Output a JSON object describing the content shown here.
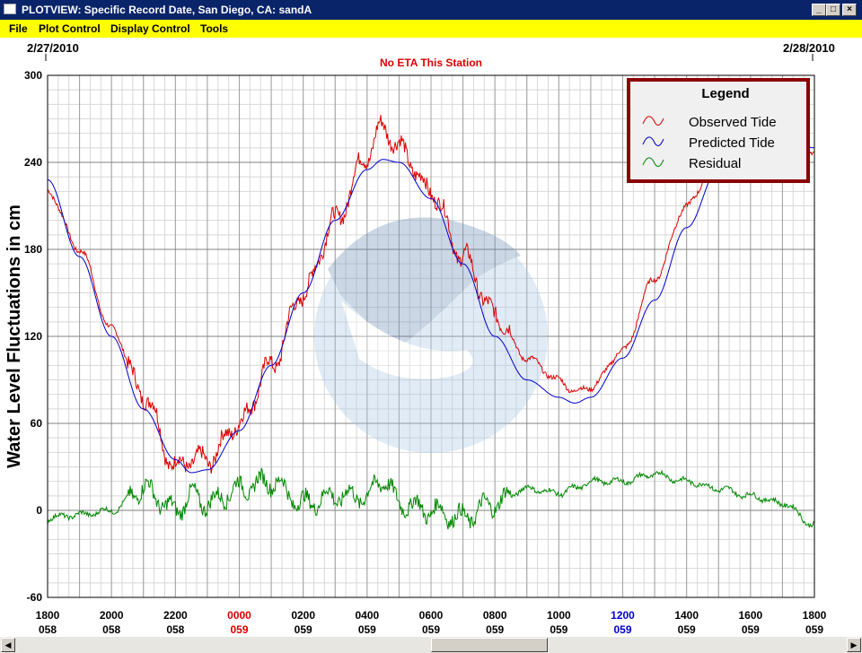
{
  "window": {
    "title": "PLOTVIEW: Specific Record Date, San Diego, CA: sandA",
    "buttons": {
      "minimize": "_",
      "maximize": "□",
      "close": "×"
    }
  },
  "menu": {
    "items": [
      "File",
      "Plot Control",
      "Display Control",
      "Tools"
    ]
  },
  "plot": {
    "date_left": "2/27/2010",
    "date_right": "2/28/2010",
    "notice": "No ETA This Station",
    "ylabel": "Water Level Fluctuations in cm",
    "legend_title": "Legend",
    "colors": {
      "observed": "#dd0000",
      "predicted": "#0000cc",
      "residual": "#008800",
      "notice": "#dd0000",
      "legend_border": "#8b0000",
      "grid": "#a0a0a0"
    }
  },
  "chart_data": {
    "type": "line",
    "title": "No ETA This Station",
    "xlabel": "",
    "ylabel": "Water Level Fluctuations in cm",
    "ylim": [
      -60,
      300
    ],
    "yticks": [
      -60,
      0,
      60,
      120,
      180,
      240,
      300
    ],
    "xlim": [
      -6,
      18
    ],
    "xlim_note": "hours relative to 0000 day 059",
    "xticks": [
      {
        "time": "1800",
        "day": "058",
        "highlight": ""
      },
      {
        "time": "2000",
        "day": "058",
        "highlight": ""
      },
      {
        "time": "2200",
        "day": "058",
        "highlight": ""
      },
      {
        "time": "0000",
        "day": "059",
        "highlight": "red"
      },
      {
        "time": "0200",
        "day": "059",
        "highlight": ""
      },
      {
        "time": "0400",
        "day": "059",
        "highlight": ""
      },
      {
        "time": "0600",
        "day": "059",
        "highlight": ""
      },
      {
        "time": "0800",
        "day": "059",
        "highlight": ""
      },
      {
        "time": "1000",
        "day": "059",
        "highlight": ""
      },
      {
        "time": "1200",
        "day": "059",
        "highlight": "blue"
      },
      {
        "time": "1400",
        "day": "059",
        "highlight": ""
      },
      {
        "time": "1600",
        "day": "059",
        "highlight": ""
      },
      {
        "time": "1800",
        "day": "059",
        "highlight": ""
      }
    ],
    "grid": true,
    "legend_position": "top-right",
    "x": [
      -6,
      -5,
      -4,
      -3,
      -2,
      -1.5,
      -1,
      0,
      1,
      2,
      3,
      4,
      4.5,
      5,
      6,
      7,
      8,
      9,
      10,
      10.5,
      11,
      12,
      13,
      14,
      15,
      16,
      17,
      18
    ],
    "series": [
      {
        "name": "Observed Tide",
        "color": "#dd0000",
        "values": [
          220,
          180,
          125,
          80,
          30,
          35,
          35,
          60,
          100,
          150,
          200,
          245,
          265,
          250,
          220,
          175,
          135,
          105,
          90,
          82,
          85,
          110,
          160,
          210,
          245,
          270,
          265,
          248
        ]
      },
      {
        "name": "Predicted Tide",
        "color": "#0000cc",
        "values": [
          228,
          175,
          120,
          70,
          35,
          26,
          28,
          55,
          100,
          150,
          200,
          235,
          242,
          240,
          215,
          170,
          120,
          90,
          78,
          74,
          78,
          105,
          145,
          195,
          235,
          255,
          258,
          250
        ]
      },
      {
        "name": "Residual",
        "color": "#008800",
        "values": [
          -5,
          -3,
          0,
          15,
          0,
          10,
          5,
          15,
          20,
          5,
          10,
          10,
          22,
          5,
          0,
          -5,
          5,
          15,
          12,
          15,
          20,
          20,
          25,
          20,
          15,
          10,
          5,
          -10
        ]
      }
    ]
  }
}
